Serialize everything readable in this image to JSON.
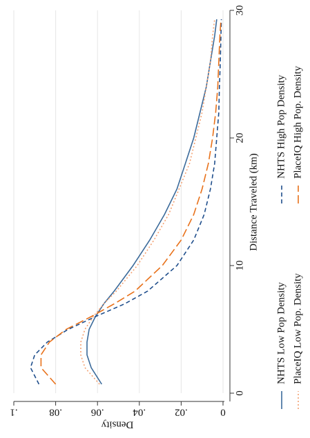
{
  "chart_data": {
    "type": "line",
    "x_label": "Distance Traveled (km)",
    "y_label": "Density",
    "x": [
      0.7,
      2,
      3,
      4,
      5,
      6,
      7,
      8,
      10,
      12,
      14,
      16,
      18,
      20,
      22,
      24,
      26,
      28,
      29.3
    ],
    "series": [
      {
        "name": "NHTS Low Pop Density",
        "color": "#3b6a9a",
        "dash": "solid",
        "values": [
          0.058,
          0.063,
          0.065,
          0.065,
          0.064,
          0.061,
          0.057,
          0.052,
          0.043,
          0.035,
          0.028,
          0.022,
          0.018,
          0.014,
          0.011,
          0.008,
          0.006,
          0.004,
          0.003
        ]
      },
      {
        "name": "NHTS High Pop Density",
        "color": "#1f4e8c",
        "dash": "dash",
        "values": [
          0.088,
          0.092,
          0.09,
          0.084,
          0.074,
          0.061,
          0.047,
          0.036,
          0.022,
          0.014,
          0.009,
          0.006,
          0.004,
          0.003,
          0.002,
          0.0017,
          0.0013,
          0.001,
          0.0008
        ]
      },
      {
        "name": "PlaceIQ Low Pop. Density",
        "color": "#f4a070",
        "dash": "dot",
        "values": [
          0.059,
          0.066,
          0.068,
          0.068,
          0.066,
          0.062,
          0.057,
          0.051,
          0.041,
          0.033,
          0.026,
          0.021,
          0.016,
          0.013,
          0.01,
          0.008,
          0.006,
          0.005,
          0.004
        ]
      },
      {
        "name": "PlaceIQ High Pop. Density",
        "color": "#e8711a",
        "dash": "longdash",
        "values": [
          0.08,
          0.087,
          0.087,
          0.083,
          0.075,
          0.063,
          0.052,
          0.042,
          0.029,
          0.02,
          0.014,
          0.01,
          0.007,
          0.005,
          0.0035,
          0.0025,
          0.002,
          0.0015,
          0.001
        ]
      }
    ],
    "xlim": [
      0,
      30
    ],
    "xticks": [
      0,
      10,
      20,
      30
    ],
    "ylim": [
      0,
      0.1
    ],
    "yticks": [
      0,
      {
        "value": 0.02,
        "label": ".02"
      },
      {
        "value": 0.04,
        "label": ".04"
      },
      {
        "value": 0.06,
        "label": ".06"
      },
      {
        "value": 0.08,
        "label": ".08"
      },
      {
        "value": 0.1,
        "label": ".1"
      }
    ],
    "grid": true,
    "legend": "bottom"
  }
}
